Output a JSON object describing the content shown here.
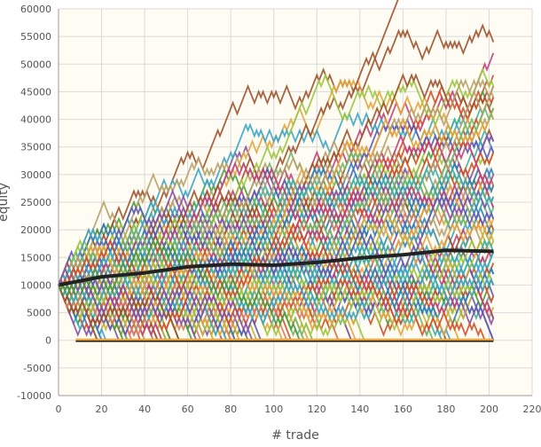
{
  "chart_data": {
    "type": "line",
    "title": "",
    "xlabel": "# trade",
    "ylabel": "equity",
    "xlim": [
      0,
      220
    ],
    "ylim": [
      -10000,
      60000
    ],
    "x_ticks": [
      0,
      20,
      40,
      60,
      80,
      100,
      120,
      140,
      160,
      180,
      200,
      220
    ],
    "y_ticks": [
      -10000,
      -5000,
      0,
      5000,
      10000,
      15000,
      20000,
      25000,
      30000,
      35000,
      40000,
      45000,
      50000,
      55000,
      60000
    ],
    "grid": true,
    "legend": "none",
    "simulation": {
      "paths": 140,
      "trades": 202,
      "start_equity": 10000,
      "step": 1000
    },
    "average_line": {
      "x": [
        0,
        20,
        40,
        60,
        80,
        100,
        120,
        140,
        160,
        180,
        202
      ],
      "y": [
        10000,
        11500,
        12200,
        13300,
        13800,
        13600,
        14100,
        14900,
        15500,
        16300,
        16100
      ]
    },
    "colors": [
      "#e8a33c",
      "#3aa6c8",
      "#8b4fa8",
      "#d64f2a",
      "#4a9a3e",
      "#c9b03a",
      "#2f7fbf",
      "#b8a06a",
      "#c2407a",
      "#6fb86a",
      "#e07a5f",
      "#5d5ab8",
      "#9bc53d",
      "#3bb2a8",
      "#a0522d"
    ],
    "background_color": "#fffdf3",
    "avg_line_color": "#222222"
  }
}
